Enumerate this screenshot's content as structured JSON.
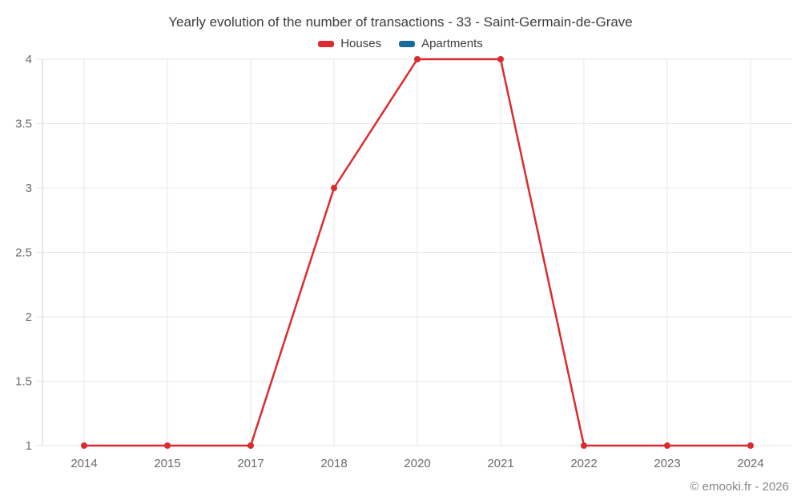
{
  "chart_data": {
    "type": "line",
    "title": "Yearly evolution of the number of transactions - 33 - Saint-Germain-de-Grave",
    "categories": [
      "2014",
      "2015",
      "2017",
      "2018",
      "2020",
      "2021",
      "2022",
      "2023",
      "2024"
    ],
    "series": [
      {
        "name": "Houses",
        "color": "#dc2b2f",
        "values": [
          1,
          1,
          1,
          3,
          4,
          4,
          1,
          1,
          1
        ]
      },
      {
        "name": "Apartments",
        "color": "#17699e",
        "values": []
      }
    ],
    "xlabel": "",
    "ylabel": "",
    "ylim": [
      1,
      4
    ],
    "yticks": [
      1,
      1.5,
      2,
      2.5,
      3,
      3.5,
      4
    ],
    "grid": true,
    "legend_position": "top",
    "footer": "© emooki.fr - 2026"
  }
}
